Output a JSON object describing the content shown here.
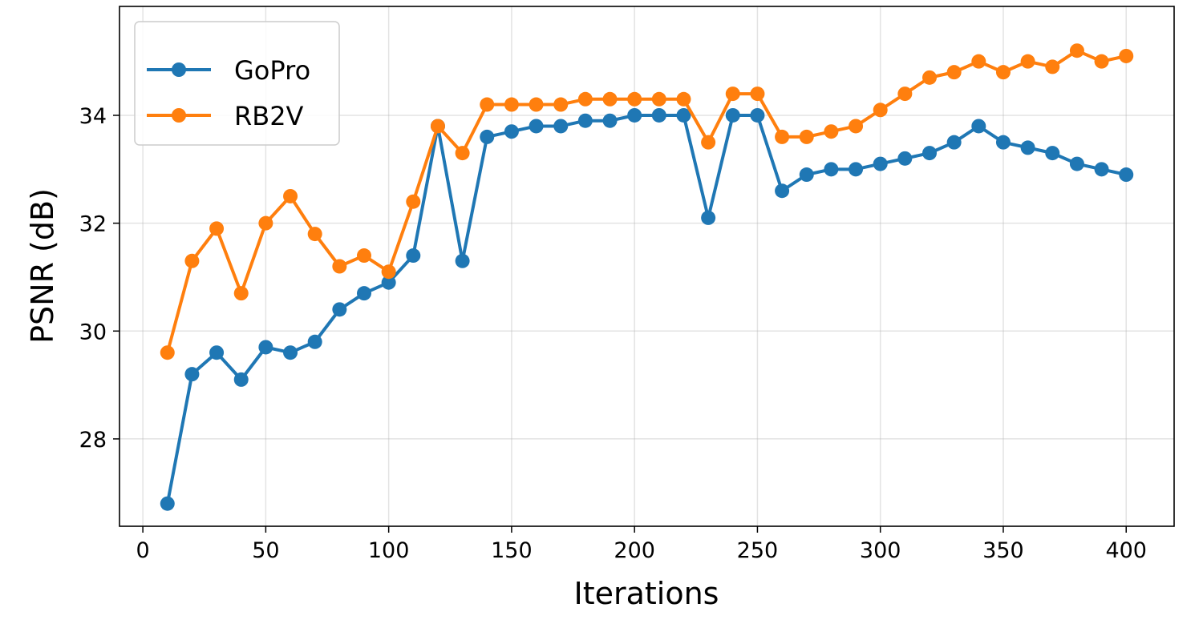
{
  "chart_data": {
    "type": "line",
    "title": "",
    "xlabel": "Iterations",
    "ylabel": "PSNR (dB)",
    "xlim": [
      -9.5,
      419.5
    ],
    "ylim": [
      26.38,
      36.02
    ],
    "xticks": [
      0,
      50,
      100,
      150,
      200,
      250,
      300,
      350,
      400
    ],
    "yticks": [
      28,
      30,
      32,
      34
    ],
    "grid": true,
    "legend_position": "top-left",
    "x": [
      10,
      20,
      30,
      40,
      50,
      60,
      70,
      80,
      90,
      100,
      110,
      120,
      130,
      140,
      150,
      160,
      170,
      180,
      190,
      200,
      210,
      220,
      230,
      240,
      250,
      260,
      270,
      280,
      290,
      300,
      310,
      320,
      330,
      340,
      350,
      360,
      370,
      380,
      390,
      400
    ],
    "series": [
      {
        "name": "GoPro",
        "color": "#1f77b4",
        "marker": "circle",
        "values": [
          26.8,
          29.2,
          29.6,
          29.1,
          29.7,
          29.6,
          29.8,
          30.4,
          30.7,
          30.9,
          31.4,
          33.8,
          31.3,
          33.6,
          33.7,
          33.8,
          33.8,
          33.9,
          33.9,
          34.0,
          34.0,
          34.0,
          32.1,
          34.0,
          34.0,
          32.6,
          32.9,
          33.0,
          33.0,
          33.1,
          33.2,
          33.3,
          33.5,
          33.8,
          33.5,
          33.4,
          33.3,
          33.1,
          33.0,
          32.9
        ]
      },
      {
        "name": "RB2V",
        "color": "#ff7f0e",
        "marker": "circle",
        "values": [
          29.6,
          31.3,
          31.9,
          30.7,
          32.0,
          32.5,
          31.8,
          31.2,
          31.4,
          31.1,
          32.4,
          33.8,
          33.3,
          34.2,
          34.2,
          34.2,
          34.2,
          34.3,
          34.3,
          34.3,
          34.3,
          34.3,
          33.5,
          34.4,
          34.4,
          33.6,
          33.6,
          33.7,
          33.8,
          34.1,
          34.4,
          34.7,
          34.8,
          35.0,
          34.8,
          35.0,
          34.9,
          35.2,
          35.0,
          35.1
        ]
      }
    ]
  }
}
